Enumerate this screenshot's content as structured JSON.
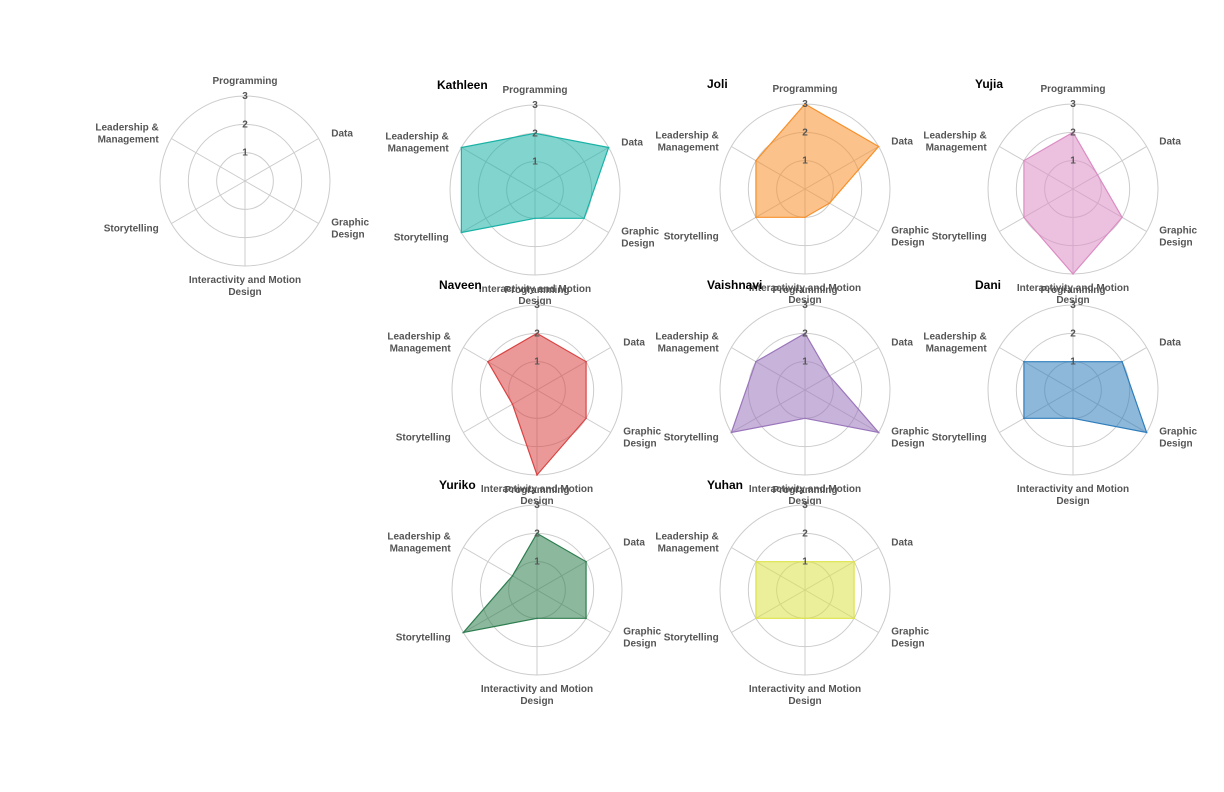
{
  "chart_data": {
    "type": "radar",
    "axes": [
      "Programming",
      "Data",
      "Graphic Design",
      "Interactivity and Motion Design",
      "Storytelling",
      "Leadership & Management"
    ],
    "axis_label_lines": [
      [
        "Programming"
      ],
      [
        "Data"
      ],
      [
        "Graphic",
        "Design"
      ],
      [
        "Interactivity and Motion",
        "Design"
      ],
      [
        "Storytelling"
      ],
      [
        "Leadership &",
        "Management"
      ]
    ],
    "rlim": [
      0,
      3
    ],
    "r_ticks": [
      "1",
      "2",
      "3"
    ],
    "grid": true,
    "panels": [
      {
        "title": "",
        "values": null,
        "color": ""
      },
      {
        "title": "Kathleen",
        "values": [
          2,
          3,
          2,
          1,
          3,
          3
        ],
        "color": "#1ab2a6"
      },
      {
        "title": "Joli",
        "values": [
          3,
          3,
          1,
          1,
          2,
          2
        ],
        "color": "#f7902b"
      },
      {
        "title": "Yujia",
        "values": [
          2,
          1,
          2,
          3,
          2,
          2
        ],
        "color": "#dc8cc4"
      },
      {
        "title": "Naveen",
        "values": [
          2,
          2,
          2,
          3,
          1,
          2
        ],
        "color": "#d94444"
      },
      {
        "title": "Vaishnavi",
        "values": [
          2,
          1,
          3,
          1,
          3,
          2
        ],
        "color": "#9a76bb"
      },
      {
        "title": "Dani",
        "values": [
          1,
          2,
          3,
          1,
          2,
          2
        ],
        "color": "#2f7dbb"
      },
      {
        "title": "Yuriko",
        "values": [
          2,
          2,
          2,
          1,
          3,
          1
        ],
        "color": "#2e7d4f"
      },
      {
        "title": "Yuhan",
        "values": [
          1,
          2,
          2,
          1,
          2,
          2
        ],
        "color": "#dde246"
      }
    ]
  }
}
